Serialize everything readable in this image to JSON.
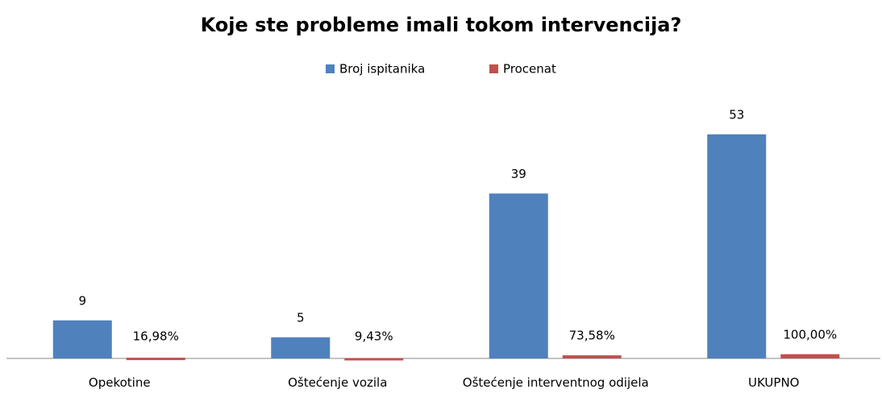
{
  "chart_data": {
    "type": "bar",
    "title": "Koje ste probleme imali tokom intervencija?",
    "categories": [
      "Opekotine",
      "Oštećenje vozila",
      "Oštećenje interventnog odijela",
      "UKUPNO"
    ],
    "series": [
      {
        "name": "Broj ispitanika",
        "color": "#4f81bd",
        "values": [
          9,
          5,
          39,
          53
        ]
      },
      {
        "name": "Procenat",
        "color": "#c0504d",
        "values": [
          0.1698,
          0.0943,
          0.7358,
          1
        ],
        "value_labels": [
          "16,98%",
          "9,43%",
          "73,58%",
          "100,00%"
        ]
      }
    ],
    "ylim": [
      0,
      60
    ],
    "legend": "top"
  }
}
